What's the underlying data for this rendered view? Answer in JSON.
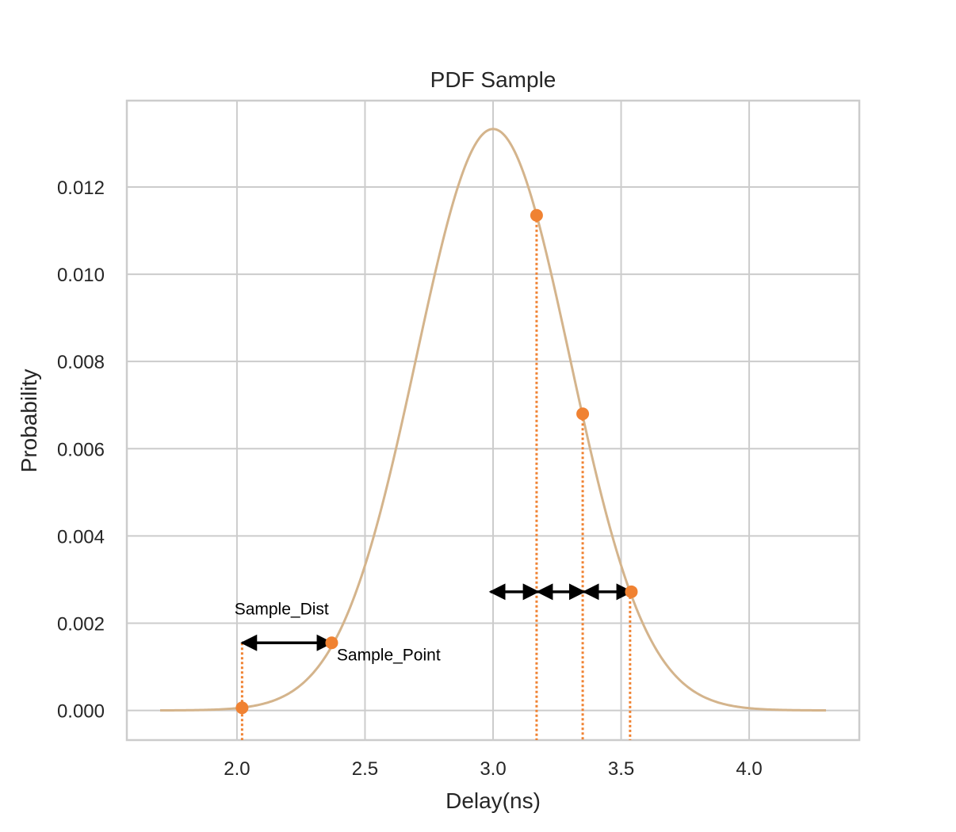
{
  "chart_data": {
    "type": "line",
    "title": "PDF Sample",
    "xlabel": "Delay(ns)",
    "ylabel": "Probability",
    "xlim": [
      1.57,
      4.43
    ],
    "ylim": [
      -0.00068,
      0.01398
    ],
    "xticks": [
      2.0,
      2.5,
      3.0,
      3.5,
      4.0
    ],
    "xtick_labels": [
      "2.0",
      "2.5",
      "3.0",
      "3.5",
      "4.0"
    ],
    "yticks": [
      0.0,
      0.002,
      0.004,
      0.006,
      0.008,
      0.01,
      0.012
    ],
    "ytick_labels": [
      "0.000",
      "0.002",
      "0.004",
      "0.006",
      "0.008",
      "0.010",
      "0.012"
    ],
    "grid": true,
    "curve": {
      "distribution": "normal",
      "mean": 3.0,
      "std": 0.3,
      "peak": 0.01333,
      "x_range": [
        1.7,
        4.3
      ],
      "color": "#d4b48c"
    },
    "sample_points": {
      "color": "#f08232",
      "points": [
        {
          "x": 2.02,
          "y": 6e-05
        },
        {
          "x": 2.37,
          "y": 0.00155
        },
        {
          "x": 3.17,
          "y": 0.01135
        },
        {
          "x": 3.35,
          "y": 0.0068
        },
        {
          "x": 3.54,
          "y": 0.00272
        }
      ]
    },
    "dotted_lines": [
      {
        "x": 2.02,
        "y_top": 0.00155
      },
      {
        "x": 3.17,
        "y_top": 0.01135
      },
      {
        "x": 3.35,
        "y_top": 0.0068
      },
      {
        "x": 3.535,
        "y_top": 0.00272
      }
    ],
    "arrows": [
      {
        "x1": 2.02,
        "x2": 2.37,
        "y": 0.00155
      },
      {
        "x1": 2.99,
        "x2": 3.175,
        "y": 0.00272
      },
      {
        "x1": 3.175,
        "x2": 3.355,
        "y": 0.00272
      },
      {
        "x1": 3.355,
        "x2": 3.54,
        "y": 0.00272
      }
    ],
    "annotations": [
      {
        "text": "Sample_Dist",
        "x": 1.99,
        "y": 0.0022
      },
      {
        "text": "Sample_Point",
        "x": 2.39,
        "y": 0.00115
      }
    ]
  }
}
